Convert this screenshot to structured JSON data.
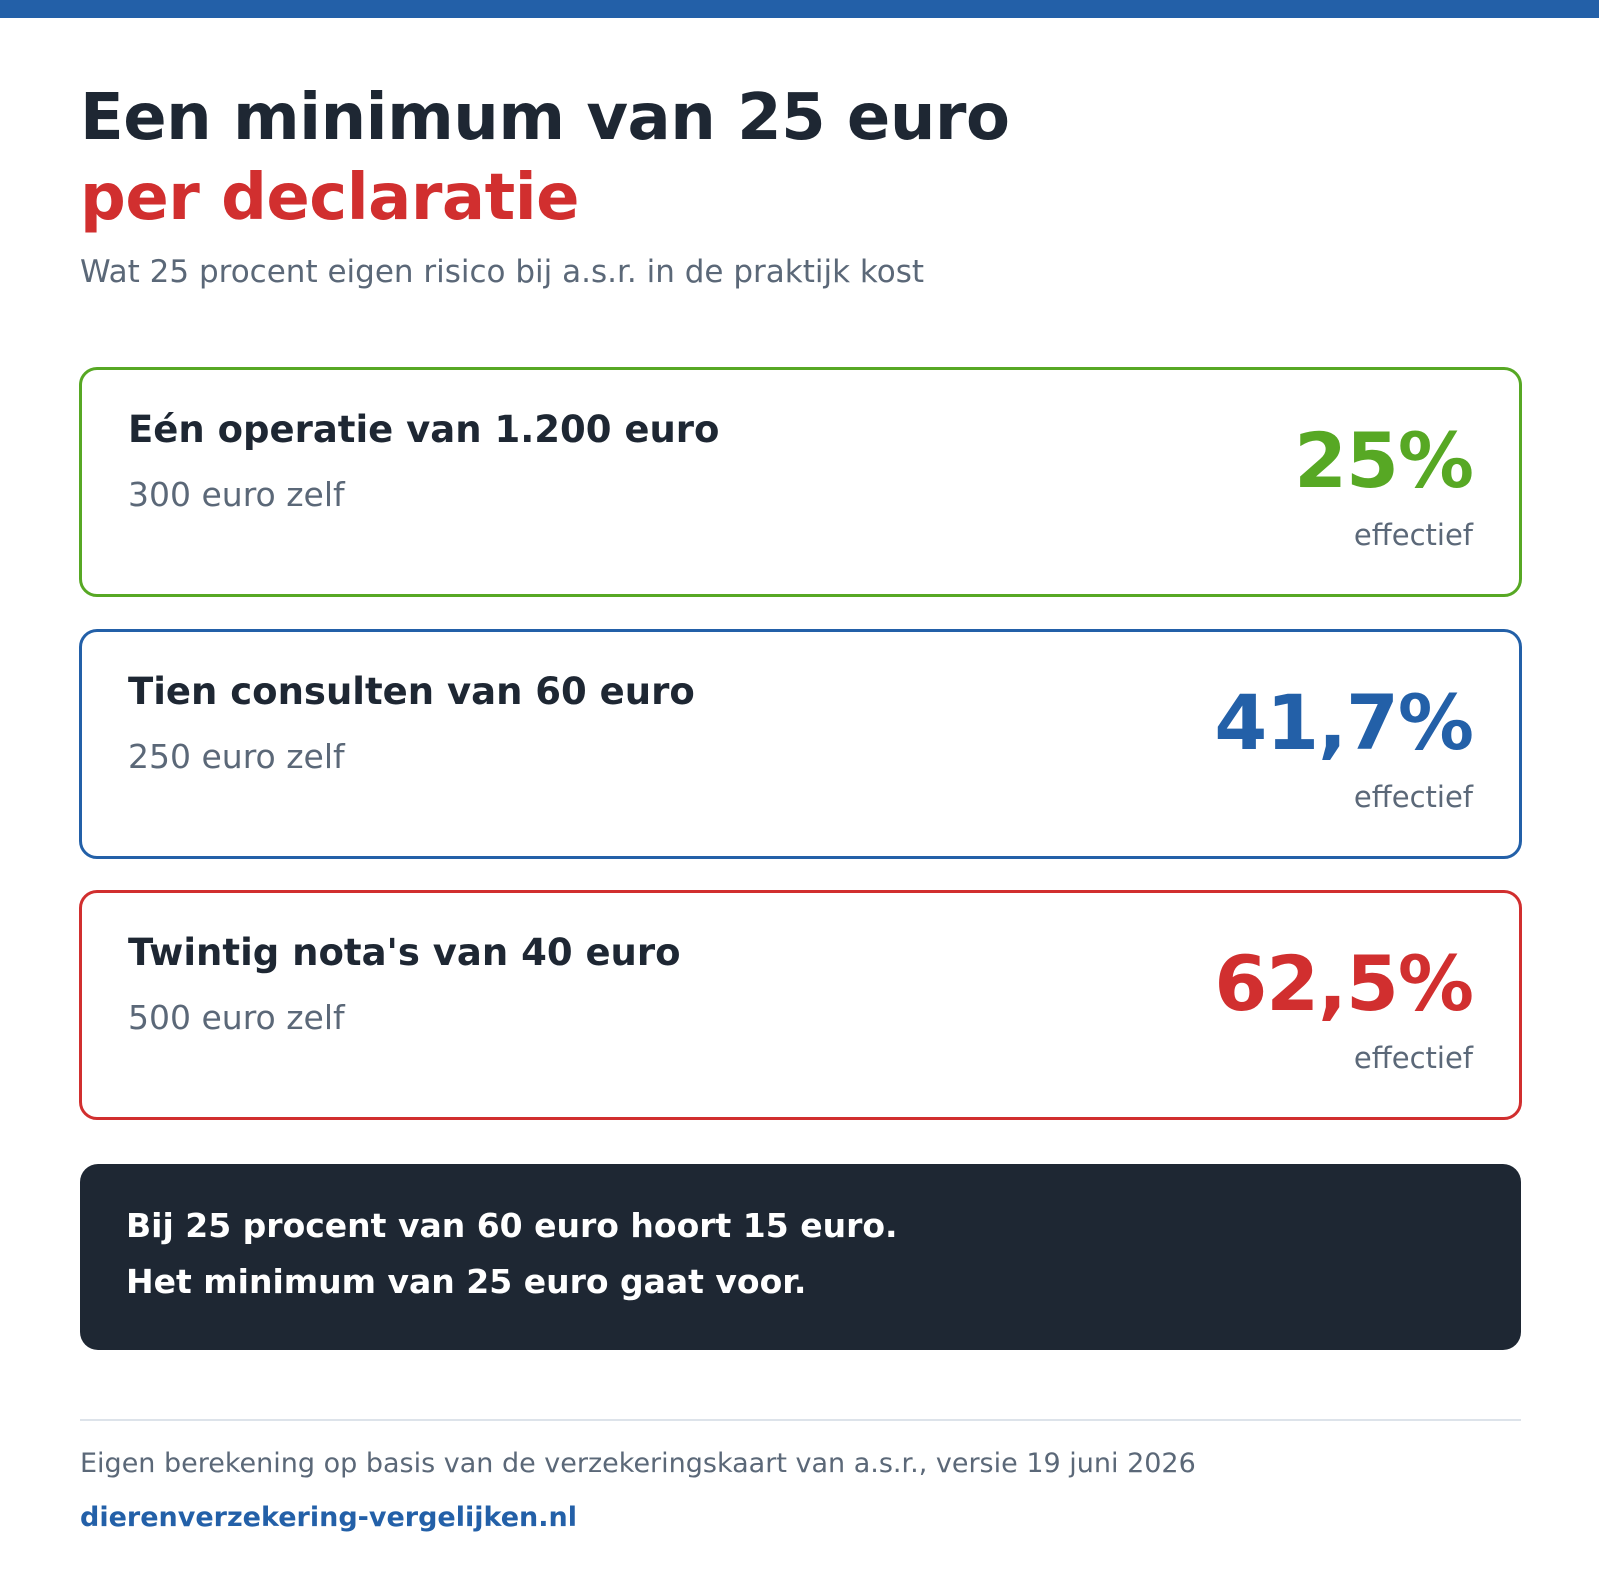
{
  "header": {
    "title": "Een minimum van 25 euro",
    "title_accent": "per declaratie",
    "subtitle": "Wat 25 procent eigen risico bij a.s.r. in de praktijk kost"
  },
  "cards": [
    {
      "title": "Eén operatie van 1.200 euro",
      "own_cost": "300 euro zelf",
      "percentage": "25%",
      "percentage_label": "effectief",
      "color": "#57a824"
    },
    {
      "title": "Tien consulten van 60 euro",
      "own_cost": "250 euro zelf",
      "percentage": "41,7%",
      "percentage_label": "effectief",
      "color": "#2360a8"
    },
    {
      "title": "Twintig nota's van 40 euro",
      "own_cost": "500 euro zelf",
      "percentage": "62,5%",
      "percentage_label": "effectief",
      "color": "#d12f2f"
    }
  ],
  "note": {
    "line1": "Bij 25 procent van 60 euro hoort 15 euro.",
    "line2": "Het minimum van 25 euro gaat voor."
  },
  "footer": {
    "source": "Eigen berekening op basis van de verzekeringskaart van a.s.r., versie 19 juni 2026",
    "site": "dierenverzekering-vergelijken.nl"
  },
  "colors": {
    "brand_blue": "#2360a8",
    "accent_red": "#d12f2f",
    "dark": "#1e2733",
    "muted": "#5b6878"
  }
}
